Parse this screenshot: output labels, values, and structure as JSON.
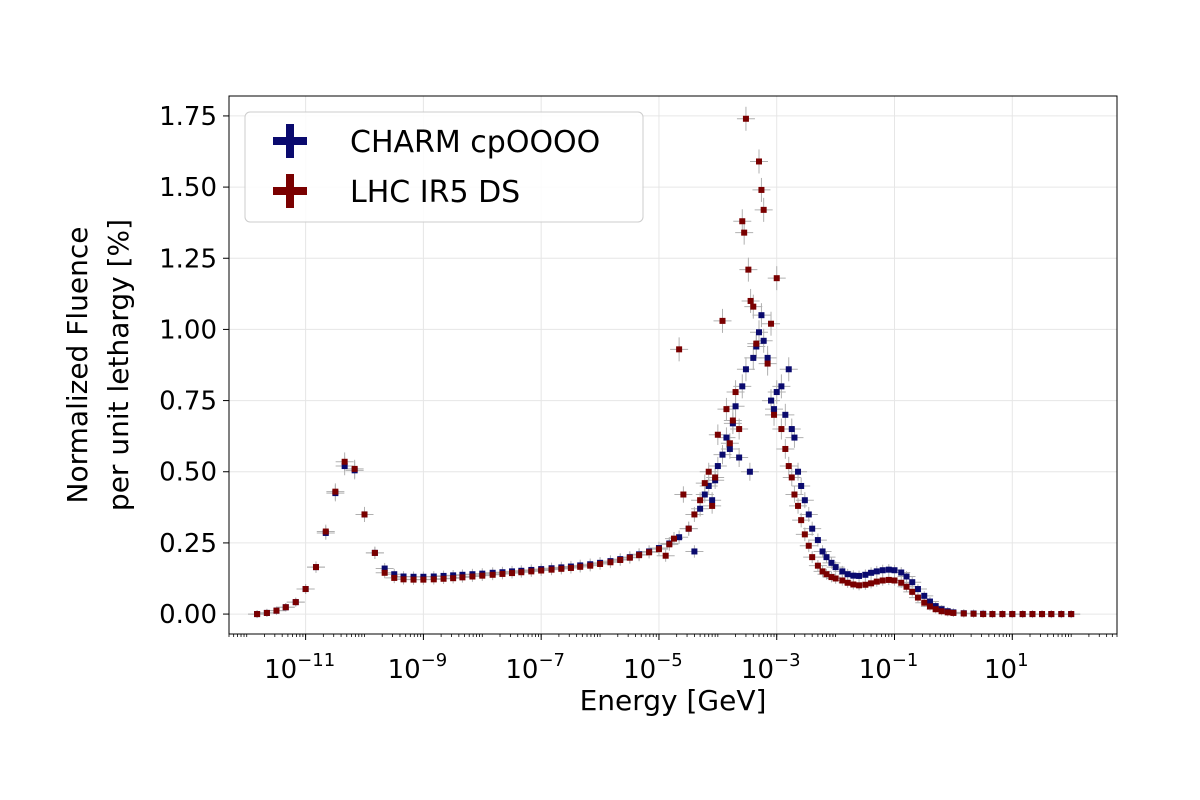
{
  "chart_data": {
    "type": "scatter",
    "title": "",
    "xlabel": "Energy [GeV]",
    "ylabel_line1": "Normalized Fluence",
    "ylabel_line2": "per unit lethargy [%]",
    "xscale": "log",
    "xlim": [
      5e-13,
      600
    ],
    "ylim": [
      -0.07,
      1.82
    ],
    "grid": true,
    "legend_placement": "top-left",
    "error_bar_color": "#b0b0b0",
    "x_ticks": [
      {
        "value": 1e-11,
        "base": "10",
        "exp": "−11"
      },
      {
        "value": 1e-09,
        "base": "10",
        "exp": "−9"
      },
      {
        "value": 1e-07,
        "base": "10",
        "exp": "−7"
      },
      {
        "value": 1e-05,
        "base": "10",
        "exp": "−5"
      },
      {
        "value": 0.001,
        "base": "10",
        "exp": "−3"
      },
      {
        "value": 0.1,
        "base": "10",
        "exp": "−1"
      },
      {
        "value": 10,
        "base": "10",
        "exp": "1"
      }
    ],
    "y_ticks": [
      {
        "value": 0.0,
        "label": "0.00"
      },
      {
        "value": 0.25,
        "label": "0.25"
      },
      {
        "value": 0.5,
        "label": "0.50"
      },
      {
        "value": 0.75,
        "label": "0.75"
      },
      {
        "value": 1.0,
        "label": "1.00"
      },
      {
        "value": 1.25,
        "label": "1.25"
      },
      {
        "value": 1.5,
        "label": "1.50"
      },
      {
        "value": 1.75,
        "label": "1.75"
      }
    ],
    "series": [
      {
        "name": "CHARM cpOOOO",
        "color": "#0a0a6e",
        "points": [
          [
            1.5e-12,
            0.0
          ],
          [
            2.2e-12,
            0.004
          ],
          [
            3.2e-12,
            0.012
          ],
          [
            4.6e-12,
            0.024
          ],
          [
            6.8e-12,
            0.042
          ],
          [
            1e-11,
            0.088
          ],
          [
            1.5e-11,
            0.165
          ],
          [
            2.2e-11,
            0.285
          ],
          [
            3.2e-11,
            0.425
          ],
          [
            4.6e-11,
            0.52
          ],
          [
            6.8e-11,
            0.505
          ],
          [
            1e-10,
            0.35
          ],
          [
            1.5e-10,
            0.215
          ],
          [
            2.2e-10,
            0.16
          ],
          [
            3.2e-10,
            0.14
          ],
          [
            4.6e-10,
            0.132
          ],
          [
            6.8e-10,
            0.131
          ],
          [
            1e-09,
            0.131
          ],
          [
            1.5e-09,
            0.132
          ],
          [
            2.2e-09,
            0.134
          ],
          [
            3.2e-09,
            0.136
          ],
          [
            4.6e-09,
            0.138
          ],
          [
            6.8e-09,
            0.14
          ],
          [
            1e-08,
            0.142
          ],
          [
            1.5e-08,
            0.145
          ],
          [
            2.2e-08,
            0.147
          ],
          [
            3.2e-08,
            0.15
          ],
          [
            4.6e-08,
            0.152
          ],
          [
            6.8e-08,
            0.155
          ],
          [
            1e-07,
            0.158
          ],
          [
            1.5e-07,
            0.161
          ],
          [
            2.2e-07,
            0.164
          ],
          [
            3.2e-07,
            0.167
          ],
          [
            4.6e-07,
            0.171
          ],
          [
            6.8e-07,
            0.175
          ],
          [
            1e-06,
            0.18
          ],
          [
            1.5e-06,
            0.186
          ],
          [
            2.2e-06,
            0.193
          ],
          [
            3.2e-06,
            0.2
          ],
          [
            4.6e-06,
            0.21
          ],
          [
            6.8e-06,
            0.22
          ],
          [
            1e-05,
            0.232
          ],
          [
            1.5e-05,
            0.248
          ],
          [
            2.2e-05,
            0.27
          ],
          [
            3.2e-05,
            0.3
          ],
          [
            4e-05,
            0.22
          ],
          [
            5e-05,
            0.37
          ],
          [
            6e-05,
            0.42
          ],
          [
            7e-05,
            0.45
          ],
          [
            8e-05,
            0.4
          ],
          [
            9e-05,
            0.47
          ],
          [
            0.0001,
            0.52
          ],
          [
            0.00012,
            0.56
          ],
          [
            0.00014,
            0.62
          ],
          [
            0.00016,
            0.58
          ],
          [
            0.00018,
            0.67
          ],
          [
            0.0002,
            0.73
          ],
          [
            0.00023,
            0.55
          ],
          [
            0.00026,
            0.8
          ],
          [
            0.0003,
            0.86
          ],
          [
            0.00035,
            0.5
          ],
          [
            0.0004,
            0.9
          ],
          [
            0.00045,
            0.94
          ],
          [
            0.0005,
            0.99
          ],
          [
            0.00055,
            1.05
          ],
          [
            0.0006,
            0.96
          ],
          [
            0.0007,
            0.9
          ],
          [
            0.0008,
            0.75
          ],
          [
            0.0009,
            0.72
          ],
          [
            0.001,
            0.78
          ],
          [
            0.0012,
            0.8
          ],
          [
            0.0014,
            0.7
          ],
          [
            0.0016,
            0.86
          ],
          [
            0.0018,
            0.65
          ],
          [
            0.002,
            0.62
          ],
          [
            0.0023,
            0.5
          ],
          [
            0.0026,
            0.45
          ],
          [
            0.003,
            0.4
          ],
          [
            0.0035,
            0.35
          ],
          [
            0.004,
            0.3
          ],
          [
            0.005,
            0.26
          ],
          [
            0.006,
            0.22
          ],
          [
            0.007,
            0.2
          ],
          [
            0.0085,
            0.18
          ],
          [
            0.01,
            0.165
          ],
          [
            0.013,
            0.15
          ],
          [
            0.016,
            0.14
          ],
          [
            0.02,
            0.135
          ],
          [
            0.025,
            0.134
          ],
          [
            0.032,
            0.138
          ],
          [
            0.04,
            0.145
          ],
          [
            0.05,
            0.15
          ],
          [
            0.063,
            0.154
          ],
          [
            0.08,
            0.156
          ],
          [
            0.1,
            0.154
          ],
          [
            0.13,
            0.146
          ],
          [
            0.16,
            0.132
          ],
          [
            0.2,
            0.112
          ],
          [
            0.25,
            0.088
          ],
          [
            0.32,
            0.064
          ],
          [
            0.4,
            0.044
          ],
          [
            0.5,
            0.028
          ],
          [
            0.63,
            0.017
          ],
          [
            0.8,
            0.01
          ],
          [
            1.0,
            0.006
          ],
          [
            1.5,
            0.003
          ],
          [
            2.2,
            0.002
          ],
          [
            3.2,
            0.001
          ],
          [
            4.6,
            0.0
          ],
          [
            6.8,
            0.0
          ],
          [
            10,
            0.0
          ],
          [
            15,
            0.0
          ],
          [
            22,
            0.0
          ],
          [
            32,
            0.0
          ],
          [
            46,
            0.0
          ],
          [
            68,
            0.0
          ],
          [
            100,
            0.0
          ]
        ]
      },
      {
        "name": "LHC IR5 DS",
        "color": "#7a0000",
        "points": [
          [
            1.5e-12,
            0.0
          ],
          [
            2.2e-12,
            0.004
          ],
          [
            3.2e-12,
            0.012
          ],
          [
            4.6e-12,
            0.024
          ],
          [
            6.8e-12,
            0.042
          ],
          [
            1e-11,
            0.088
          ],
          [
            1.5e-11,
            0.165
          ],
          [
            2.2e-11,
            0.29
          ],
          [
            3.2e-11,
            0.43
          ],
          [
            4.6e-11,
            0.535
          ],
          [
            6.8e-11,
            0.51
          ],
          [
            1e-10,
            0.35
          ],
          [
            1.5e-10,
            0.215
          ],
          [
            2.2e-10,
            0.145
          ],
          [
            3.2e-10,
            0.127
          ],
          [
            4.6e-10,
            0.122
          ],
          [
            6.8e-10,
            0.121
          ],
          [
            1e-09,
            0.121
          ],
          [
            1.5e-09,
            0.122
          ],
          [
            2.2e-09,
            0.124
          ],
          [
            3.2e-09,
            0.126
          ],
          [
            4.6e-09,
            0.129
          ],
          [
            6.8e-09,
            0.132
          ],
          [
            1e-08,
            0.135
          ],
          [
            1.5e-08,
            0.138
          ],
          [
            2.2e-08,
            0.141
          ],
          [
            3.2e-08,
            0.144
          ],
          [
            4.6e-08,
            0.147
          ],
          [
            6.8e-08,
            0.15
          ],
          [
            1e-07,
            0.153
          ],
          [
            1.5e-07,
            0.156
          ],
          [
            2.2e-07,
            0.159
          ],
          [
            3.2e-07,
            0.162
          ],
          [
            4.6e-07,
            0.166
          ],
          [
            6.8e-07,
            0.17
          ],
          [
            1e-06,
            0.176
          ],
          [
            1.5e-06,
            0.182
          ],
          [
            2.2e-06,
            0.19
          ],
          [
            3.2e-06,
            0.198
          ],
          [
            4.6e-06,
            0.207
          ],
          [
            6.8e-06,
            0.217
          ],
          [
            1e-05,
            0.228
          ],
          [
            1.3e-05,
            0.205
          ],
          [
            1.5e-05,
            0.245
          ],
          [
            1.8e-05,
            0.265
          ],
          [
            2.2e-05,
            0.93
          ],
          [
            2.6e-05,
            0.42
          ],
          [
            3.2e-05,
            0.3
          ],
          [
            4e-05,
            0.35
          ],
          [
            5e-05,
            0.4
          ],
          [
            6e-05,
            0.46
          ],
          [
            7e-05,
            0.5
          ],
          [
            8e-05,
            0.38
          ],
          [
            9e-05,
            0.48
          ],
          [
            0.0001,
            0.63
          ],
          [
            0.00012,
            1.03
          ],
          [
            0.00014,
            0.72
          ],
          [
            0.00016,
            0.6
          ],
          [
            0.00018,
            0.68
          ],
          [
            0.0002,
            0.78
          ],
          [
            0.00023,
            0.65
          ],
          [
            0.00026,
            1.38
          ],
          [
            0.00028,
            1.34
          ],
          [
            0.0003,
            1.74
          ],
          [
            0.00033,
            1.21
          ],
          [
            0.00036,
            1.1
          ],
          [
            0.0004,
            1.08
          ],
          [
            0.00045,
            0.95
          ],
          [
            0.0005,
            1.59
          ],
          [
            0.00055,
            1.49
          ],
          [
            0.0006,
            1.42
          ],
          [
            0.0007,
            0.88
          ],
          [
            0.0008,
            1.02
          ],
          [
            0.0009,
            0.7
          ],
          [
            0.001,
            1.18
          ],
          [
            0.0012,
            0.65
          ],
          [
            0.0014,
            0.58
          ],
          [
            0.0016,
            0.52
          ],
          [
            0.0018,
            0.48
          ],
          [
            0.002,
            0.42
          ],
          [
            0.0023,
            0.38
          ],
          [
            0.0026,
            0.33
          ],
          [
            0.003,
            0.28
          ],
          [
            0.0035,
            0.24
          ],
          [
            0.004,
            0.2
          ],
          [
            0.005,
            0.17
          ],
          [
            0.006,
            0.15
          ],
          [
            0.007,
            0.14
          ],
          [
            0.0085,
            0.13
          ],
          [
            0.01,
            0.125
          ],
          [
            0.013,
            0.118
          ],
          [
            0.016,
            0.11
          ],
          [
            0.02,
            0.104
          ],
          [
            0.025,
            0.101
          ],
          [
            0.032,
            0.103
          ],
          [
            0.04,
            0.108
          ],
          [
            0.05,
            0.114
          ],
          [
            0.063,
            0.118
          ],
          [
            0.08,
            0.12
          ],
          [
            0.1,
            0.118
          ],
          [
            0.13,
            0.11
          ],
          [
            0.16,
            0.096
          ],
          [
            0.2,
            0.078
          ],
          [
            0.25,
            0.058
          ],
          [
            0.32,
            0.04
          ],
          [
            0.4,
            0.027
          ],
          [
            0.5,
            0.017
          ],
          [
            0.63,
            0.01
          ],
          [
            0.8,
            0.006
          ],
          [
            1.0,
            0.004
          ],
          [
            1.5,
            0.002
          ],
          [
            2.2,
            0.001
          ],
          [
            3.2,
            0.0
          ],
          [
            4.6,
            0.0
          ],
          [
            6.8,
            0.0
          ],
          [
            10,
            0.0
          ],
          [
            15,
            0.0
          ],
          [
            22,
            0.0
          ],
          [
            32,
            0.0
          ],
          [
            46,
            0.0
          ],
          [
            68,
            0.0
          ],
          [
            100,
            0.0
          ]
        ]
      }
    ]
  }
}
